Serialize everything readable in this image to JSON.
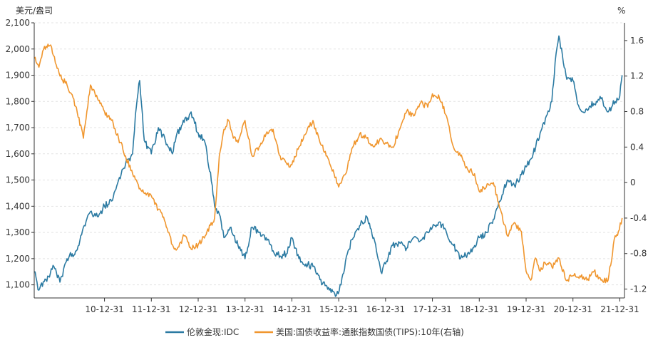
{
  "chart_data": {
    "type": "line",
    "left_axis": {
      "unit": "美元/盎司",
      "range": [
        1050,
        2100
      ],
      "ticks": [
        1100,
        1200,
        1300,
        1400,
        1500,
        1600,
        1700,
        1800,
        1900,
        2000,
        2100
      ],
      "tick_labels": [
        "1,100",
        "1,200",
        "1,300",
        "1,400",
        "1,500",
        "1,600",
        "1,700",
        "1,800",
        "1,900",
        "2,000",
        "2,100"
      ]
    },
    "right_axis": {
      "unit": "%",
      "range": [
        -1.3,
        1.8
      ],
      "ticks": [
        -1.2,
        -0.8,
        -0.4,
        0,
        0.4,
        0.8,
        1.2,
        1.6
      ],
      "tick_labels": [
        "-1.2",
        "-0.8",
        "-0.4",
        "0",
        "0.4",
        "0.8",
        "1.2",
        "1.6"
      ]
    },
    "x_axis": {
      "range": [
        2009.5,
        2022.1
      ],
      "tick_positions": [
        2011,
        2012,
        2013,
        2014,
        2015,
        2016,
        2017,
        2018,
        2019,
        2020,
        2021,
        2022
      ],
      "tick_labels": [
        "10-12-31",
        "11-12-31",
        "12-12-31",
        "13-12-31",
        "14-12-31",
        "15-12-31",
        "16-12-31",
        "17-12-31",
        "18-12-31",
        "19-12-31",
        "20-12-31",
        "21-12-31"
      ]
    },
    "grid": "horizontal-dashed",
    "legend_position": "bottom-center",
    "series": [
      {
        "name": "伦敦金现:IDC",
        "axis": "left",
        "color": "#2b7aa2",
        "x": [
          2009.5,
          2009.6,
          2009.75,
          2009.92,
          2010.05,
          2010.2,
          2010.4,
          2010.55,
          2010.7,
          2010.85,
          2011.0,
          2011.15,
          2011.3,
          2011.45,
          2011.6,
          2011.68,
          2011.75,
          2011.85,
          2012.0,
          2012.15,
          2012.3,
          2012.45,
          2012.55,
          2012.7,
          2012.85,
          2013.0,
          2013.15,
          2013.3,
          2013.35,
          2013.45,
          2013.55,
          2013.7,
          2013.85,
          2014.0,
          2014.15,
          2014.3,
          2014.45,
          2014.6,
          2014.75,
          2014.9,
          2015.0,
          2015.15,
          2015.3,
          2015.45,
          2015.6,
          2015.8,
          2015.95,
          2016.05,
          2016.2,
          2016.35,
          2016.5,
          2016.6,
          2016.75,
          2016.9,
          2017.0,
          2017.15,
          2017.3,
          2017.45,
          2017.6,
          2017.75,
          2017.9,
          2018.0,
          2018.15,
          2018.3,
          2018.45,
          2018.6,
          2018.75,
          2018.9,
          2019.0,
          2019.15,
          2019.3,
          2019.45,
          2019.6,
          2019.75,
          2019.9,
          2020.0,
          2020.15,
          2020.3,
          2020.45,
          2020.55,
          2020.62,
          2020.7,
          2020.85,
          2021.0,
          2021.1,
          2021.2,
          2021.35,
          2021.5,
          2021.6,
          2021.75,
          2021.9,
          2022.0,
          2022.05
        ],
        "values": [
          1150,
          1080,
          1120,
          1170,
          1110,
          1200,
          1230,
          1320,
          1380,
          1360,
          1400,
          1420,
          1500,
          1560,
          1600,
          1780,
          1880,
          1650,
          1600,
          1700,
          1650,
          1600,
          1680,
          1720,
          1760,
          1680,
          1640,
          1480,
          1400,
          1370,
          1280,
          1320,
          1250,
          1200,
          1320,
          1300,
          1280,
          1230,
          1210,
          1220,
          1280,
          1200,
          1180,
          1170,
          1120,
          1080,
          1060,
          1100,
          1230,
          1300,
          1340,
          1360,
          1280,
          1150,
          1180,
          1250,
          1260,
          1240,
          1280,
          1270,
          1300,
          1320,
          1340,
          1300,
          1250,
          1200,
          1220,
          1250,
          1280,
          1300,
          1350,
          1420,
          1500,
          1480,
          1520,
          1550,
          1600,
          1680,
          1750,
          1800,
          1950,
          2050,
          1900,
          1880,
          1790,
          1760,
          1780,
          1800,
          1810,
          1760,
          1800,
          1820,
          1900
        ]
      },
      {
        "name": "美国:国债收益率:通胀指数国债(TIPS):10年(右轴)",
        "axis": "right",
        "color": "#f0962e",
        "x": [
          2009.5,
          2009.6,
          2009.7,
          2009.85,
          2009.95,
          2010.05,
          2010.2,
          2010.4,
          2010.55,
          2010.7,
          2010.85,
          2011.0,
          2011.15,
          2011.3,
          2011.45,
          2011.6,
          2011.7,
          2011.8,
          2012.0,
          2012.15,
          2012.3,
          2012.45,
          2012.55,
          2012.7,
          2012.85,
          2013.0,
          2013.15,
          2013.35,
          2013.45,
          2013.55,
          2013.65,
          2013.75,
          2013.85,
          2014.0,
          2014.15,
          2014.3,
          2014.45,
          2014.6,
          2014.75,
          2014.9,
          2015.0,
          2015.15,
          2015.3,
          2015.45,
          2015.6,
          2015.75,
          2015.9,
          2016.0,
          2016.15,
          2016.3,
          2016.45,
          2016.6,
          2016.75,
          2016.9,
          2017.0,
          2017.15,
          2017.3,
          2017.45,
          2017.6,
          2017.75,
          2017.9,
          2018.0,
          2018.15,
          2018.3,
          2018.45,
          2018.6,
          2018.75,
          2018.9,
          2019.0,
          2019.15,
          2019.3,
          2019.45,
          2019.6,
          2019.75,
          2019.9,
          2020.0,
          2020.1,
          2020.2,
          2020.3,
          2020.4,
          2020.55,
          2020.7,
          2020.85,
          2021.0,
          2021.15,
          2021.3,
          2021.45,
          2021.6,
          2021.75,
          2021.9,
          2021.97,
          2022.05
        ],
        "values": [
          1.4,
          1.3,
          1.5,
          1.55,
          1.35,
          1.2,
          1.1,
          0.85,
          0.5,
          1.1,
          0.95,
          0.8,
          0.7,
          0.5,
          0.3,
          0.1,
          0.0,
          -0.1,
          -0.15,
          -0.3,
          -0.45,
          -0.7,
          -0.75,
          -0.6,
          -0.75,
          -0.7,
          -0.6,
          -0.4,
          0.3,
          0.6,
          0.7,
          0.5,
          0.45,
          0.7,
          0.3,
          0.4,
          0.55,
          0.6,
          0.3,
          0.2,
          0.2,
          0.4,
          0.55,
          0.7,
          0.45,
          0.3,
          0.1,
          -0.05,
          0.1,
          0.4,
          0.55,
          0.5,
          0.4,
          0.5,
          0.45,
          0.4,
          0.6,
          0.8,
          0.75,
          0.9,
          0.85,
          1.0,
          0.95,
          0.75,
          0.4,
          0.3,
          0.15,
          0.1,
          -0.1,
          -0.05,
          0.0,
          -0.3,
          -0.6,
          -0.45,
          -0.55,
          -1.0,
          -1.1,
          -0.85,
          -1.0,
          -0.9,
          -0.95,
          -0.85,
          -1.1,
          -1.05,
          -1.05,
          -1.1,
          -1.0,
          -1.1,
          -1.1,
          -0.6,
          -0.55,
          -0.4
        ]
      }
    ]
  }
}
